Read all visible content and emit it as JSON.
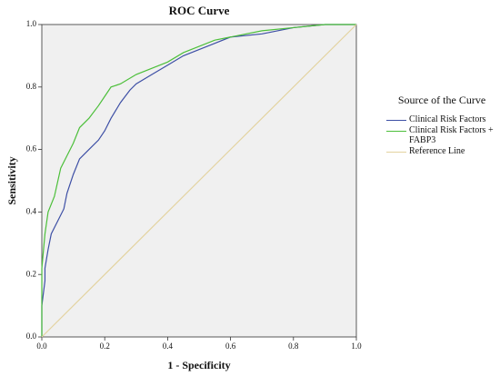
{
  "chart_data": {
    "type": "line",
    "title": "ROC Curve",
    "x_label": "1 - Specificity",
    "y_label": "Sensitivity",
    "legend_title": "Source of the Curve",
    "legend_position": "right",
    "xlim": [
      0,
      1
    ],
    "ylim": [
      0,
      1
    ],
    "xticks": [
      {
        "value": 0,
        "label": "0.0"
      },
      0.2,
      0.4,
      0.6,
      0.8,
      {
        "value": 1,
        "label": "1.0"
      }
    ],
    "yticks": [
      {
        "value": 0,
        "label": "0.0"
      },
      0.2,
      0.4,
      0.6,
      0.8,
      {
        "value": 1,
        "label": "1.0"
      }
    ],
    "series": [
      {
        "name": "Clinical Risk Factors",
        "color": "#3d4fa5",
        "x": [
          0,
          0,
          0.01,
          0.01,
          0.02,
          0.03,
          0.05,
          0.07,
          0.08,
          0.1,
          0.12,
          0.15,
          0.18,
          0.2,
          0.22,
          0.25,
          0.28,
          0.3,
          0.35,
          0.4,
          0.45,
          0.5,
          0.55,
          0.6,
          0.7,
          0.8,
          0.9,
          1
        ],
        "values": [
          0,
          0.1,
          0.18,
          0.22,
          0.28,
          0.33,
          0.37,
          0.41,
          0.46,
          0.52,
          0.57,
          0.6,
          0.63,
          0.66,
          0.7,
          0.75,
          0.79,
          0.81,
          0.84,
          0.87,
          0.9,
          0.92,
          0.94,
          0.96,
          0.97,
          0.99,
          1,
          1
        ]
      },
      {
        "name": "Clinical Risk Factors + FABP3",
        "color": "#4cbf3a",
        "x": [
          0,
          0,
          0.01,
          0.02,
          0.04,
          0.06,
          0.08,
          0.1,
          0.12,
          0.15,
          0.18,
          0.2,
          0.22,
          0.25,
          0.3,
          0.35,
          0.4,
          0.45,
          0.5,
          0.55,
          0.6,
          0.7,
          0.8,
          0.9,
          1
        ],
        "values": [
          0,
          0.22,
          0.33,
          0.4,
          0.45,
          0.54,
          0.58,
          0.62,
          0.67,
          0.7,
          0.74,
          0.77,
          0.8,
          0.81,
          0.84,
          0.86,
          0.88,
          0.91,
          0.93,
          0.95,
          0.96,
          0.98,
          0.99,
          1,
          1
        ]
      },
      {
        "name": "Reference Line",
        "color": "#e3d3a0",
        "x": [
          0,
          1
        ],
        "values": [
          0,
          1
        ]
      }
    ]
  }
}
